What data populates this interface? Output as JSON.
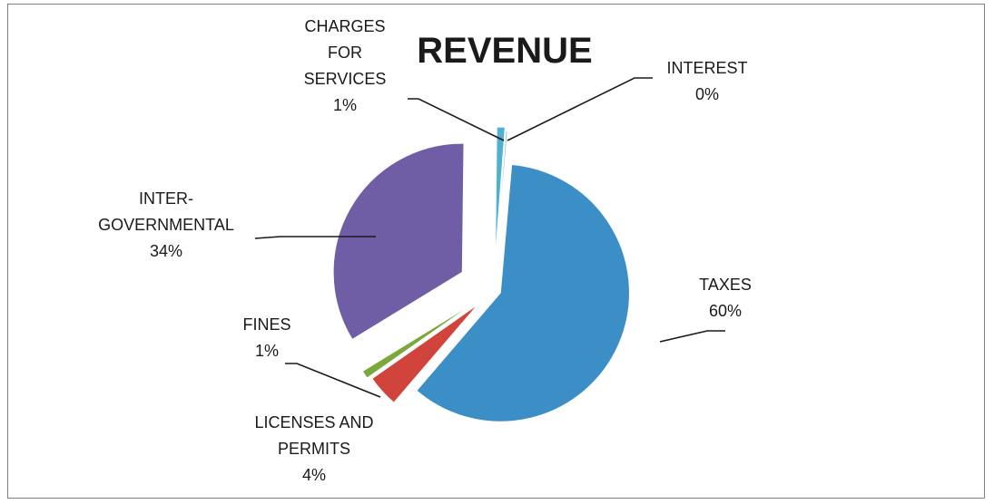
{
  "chart_data": {
    "type": "pie",
    "title": "REVENUE",
    "slices": [
      {
        "label": [
          "TAXES",
          "60%"
        ],
        "value": 60,
        "color": "#3c8fc6"
      },
      {
        "label": [
          "LICENSES AND",
          "PERMITS",
          "4%"
        ],
        "value": 4,
        "color": "#d0443c"
      },
      {
        "label": [
          "FINES",
          "1%"
        ],
        "value": 1,
        "color": "#7aa83a"
      },
      {
        "label": [
          "INTER-",
          "GOVERNMENTAL",
          "34%"
        ],
        "value": 34,
        "color": "#6f5ea6"
      },
      {
        "label": [
          "CHARGES",
          "FOR",
          "SERVICES",
          "1%"
        ],
        "value": 1,
        "color": "#4fb0cf"
      },
      {
        "label": [
          "INTEREST",
          "0%"
        ],
        "value": 0.2,
        "color": "#8fc3e0"
      }
    ]
  }
}
